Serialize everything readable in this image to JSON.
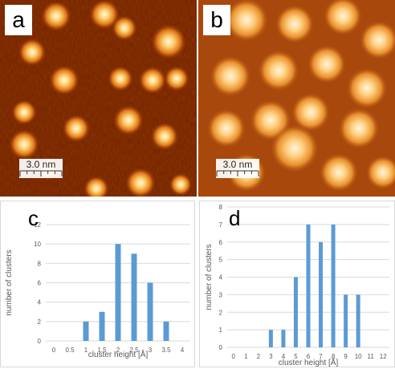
{
  "panels": {
    "a": {
      "letter": "a",
      "scale_label": "3.0 nm"
    },
    "b": {
      "letter": "b",
      "scale_label": "3.0 nm"
    },
    "c": {
      "letter": "c"
    },
    "d": {
      "letter": "d"
    }
  },
  "colors": {
    "bar": "#5b9bd5",
    "grid": "#d9d9d9",
    "axis_text": "#595959"
  },
  "chart_data": [
    {
      "panel": "c",
      "type": "bar",
      "categories": [
        "0",
        "0.5",
        "1",
        "1.5",
        "2",
        "2.5",
        "3",
        "3.5",
        "4"
      ],
      "values": [
        0,
        0,
        2,
        3,
        10,
        9,
        6,
        2,
        0
      ],
      "xlabel": "cluster height [Å]",
      "ylabel": "number of clusters",
      "ylim": [
        0,
        12
      ],
      "yticks": [
        "0",
        "2",
        "4",
        "6",
        "8",
        "10",
        "12"
      ],
      "grid": true
    },
    {
      "panel": "d",
      "type": "bar",
      "categories": [
        "0",
        "1",
        "2",
        "3",
        "4",
        "5",
        "6",
        "7",
        "8",
        "9",
        "10",
        "11",
        "12"
      ],
      "values": [
        0,
        0,
        0,
        1,
        1,
        4,
        7,
        6,
        7,
        3,
        3,
        0,
        0
      ],
      "xlabel": "cluster height [Å]",
      "ylabel": "number of clusters",
      "ylim": [
        0,
        8
      ],
      "yticks": [
        "0",
        "1",
        "2",
        "3",
        "4",
        "5",
        "6",
        "7",
        "8"
      ],
      "grid": true
    }
  ]
}
